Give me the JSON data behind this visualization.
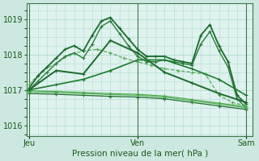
{
  "xlabel": "Pression niveau de la mer( hPa )",
  "bg_color": "#cce8e0",
  "plot_area_bg": "#dff2ee",
  "grid_color": "#b8ddd8",
  "ylim": [
    1015.7,
    1019.45
  ],
  "yticks": [
    1016,
    1017,
    1018,
    1019
  ],
  "xlim": [
    -0.5,
    49.5
  ],
  "x_ticks": [
    0,
    24,
    48
  ],
  "x_labels": [
    "Jeu",
    "Ven",
    "Sam"
  ],
  "series": [
    {
      "x": [
        0,
        3,
        6,
        9,
        12,
        15,
        18,
        21,
        24,
        27,
        30,
        33,
        36,
        39,
        42,
        45,
        48
      ],
      "y": [
        1017.15,
        1017.55,
        1017.75,
        1018.0,
        1018.1,
        1018.15,
        1018.05,
        1017.9,
        1017.8,
        1017.7,
        1017.6,
        1017.55,
        1017.5,
        1017.45,
        1016.85,
        1016.65,
        1016.55
      ],
      "color": "#5aaa5a",
      "lw": 0.9,
      "marker": "+",
      "ms": 3,
      "ls": "--"
    },
    {
      "x": [
        0,
        2,
        4,
        6,
        8,
        10,
        12,
        14,
        16,
        18,
        20,
        22,
        24,
        26,
        28,
        30,
        32,
        34,
        36,
        38,
        40,
        42,
        44,
        46,
        48
      ],
      "y": [
        1017.05,
        1017.4,
        1017.65,
        1017.9,
        1018.15,
        1018.25,
        1018.1,
        1018.55,
        1018.95,
        1019.05,
        1018.75,
        1018.45,
        1018.15,
        1017.95,
        1017.95,
        1017.95,
        1017.85,
        1017.8,
        1017.75,
        1018.55,
        1018.85,
        1018.25,
        1017.8,
        1016.85,
        1016.6
      ],
      "color": "#1a6b2a",
      "lw": 1.3,
      "marker": "+",
      "ms": 3.5,
      "ls": "-"
    },
    {
      "x": [
        0,
        2,
        4,
        6,
        8,
        10,
        12,
        14,
        16,
        18,
        20,
        22,
        24,
        26,
        28,
        30,
        32,
        34,
        36,
        38,
        40,
        42,
        44,
        46,
        48
      ],
      "y": [
        1017.0,
        1017.25,
        1017.5,
        1017.75,
        1017.95,
        1018.05,
        1017.9,
        1018.3,
        1018.8,
        1018.95,
        1018.6,
        1018.25,
        1017.95,
        1017.8,
        1017.8,
        1017.85,
        1017.8,
        1017.75,
        1017.7,
        1018.3,
        1018.65,
        1018.1,
        1017.65,
        1016.75,
        1016.5
      ],
      "color": "#2a7a3a",
      "lw": 1.0,
      "marker": "+",
      "ms": 3,
      "ls": "-"
    },
    {
      "x": [
        0,
        6,
        12,
        18,
        24,
        30,
        36,
        42,
        48
      ],
      "y": [
        1017.0,
        1017.55,
        1017.45,
        1018.4,
        1018.05,
        1017.5,
        1017.2,
        1016.9,
        1016.65
      ],
      "color": "#1a6b2a",
      "lw": 1.4,
      "marker": "+",
      "ms": 3.5,
      "ls": "-"
    },
    {
      "x": [
        0,
        6,
        12,
        18,
        24,
        30,
        36,
        42,
        48
      ],
      "y": [
        1016.9,
        1016.88,
        1016.85,
        1016.82,
        1016.8,
        1016.75,
        1016.65,
        1016.55,
        1016.45
      ],
      "color": "#1a6b2a",
      "lw": 0.9,
      "marker": "+",
      "ms": 2.5,
      "ls": "-"
    },
    {
      "x": [
        0,
        6,
        12,
        18,
        24,
        30,
        36,
        42,
        48
      ],
      "y": [
        1016.95,
        1016.93,
        1016.9,
        1016.87,
        1016.85,
        1016.8,
        1016.7,
        1016.6,
        1016.5
      ],
      "color": "#4aaa4a",
      "lw": 0.8,
      "marker": "+",
      "ms": 2.5,
      "ls": "-"
    },
    {
      "x": [
        0,
        6,
        12,
        18,
        24,
        30,
        36,
        42,
        48
      ],
      "y": [
        1016.98,
        1016.96,
        1016.93,
        1016.9,
        1016.88,
        1016.83,
        1016.73,
        1016.63,
        1016.53
      ],
      "color": "#4aaa4a",
      "lw": 0.8,
      "marker": "+",
      "ms": 2.5,
      "ls": "-"
    },
    {
      "x": [
        0,
        6,
        12,
        18,
        24,
        30,
        36,
        42,
        48
      ],
      "y": [
        1017.0,
        1017.15,
        1017.3,
        1017.55,
        1017.85,
        1017.85,
        1017.6,
        1017.3,
        1016.85
      ],
      "color": "#1a7b2a",
      "lw": 1.2,
      "marker": "+",
      "ms": 3,
      "ls": "-"
    }
  ]
}
